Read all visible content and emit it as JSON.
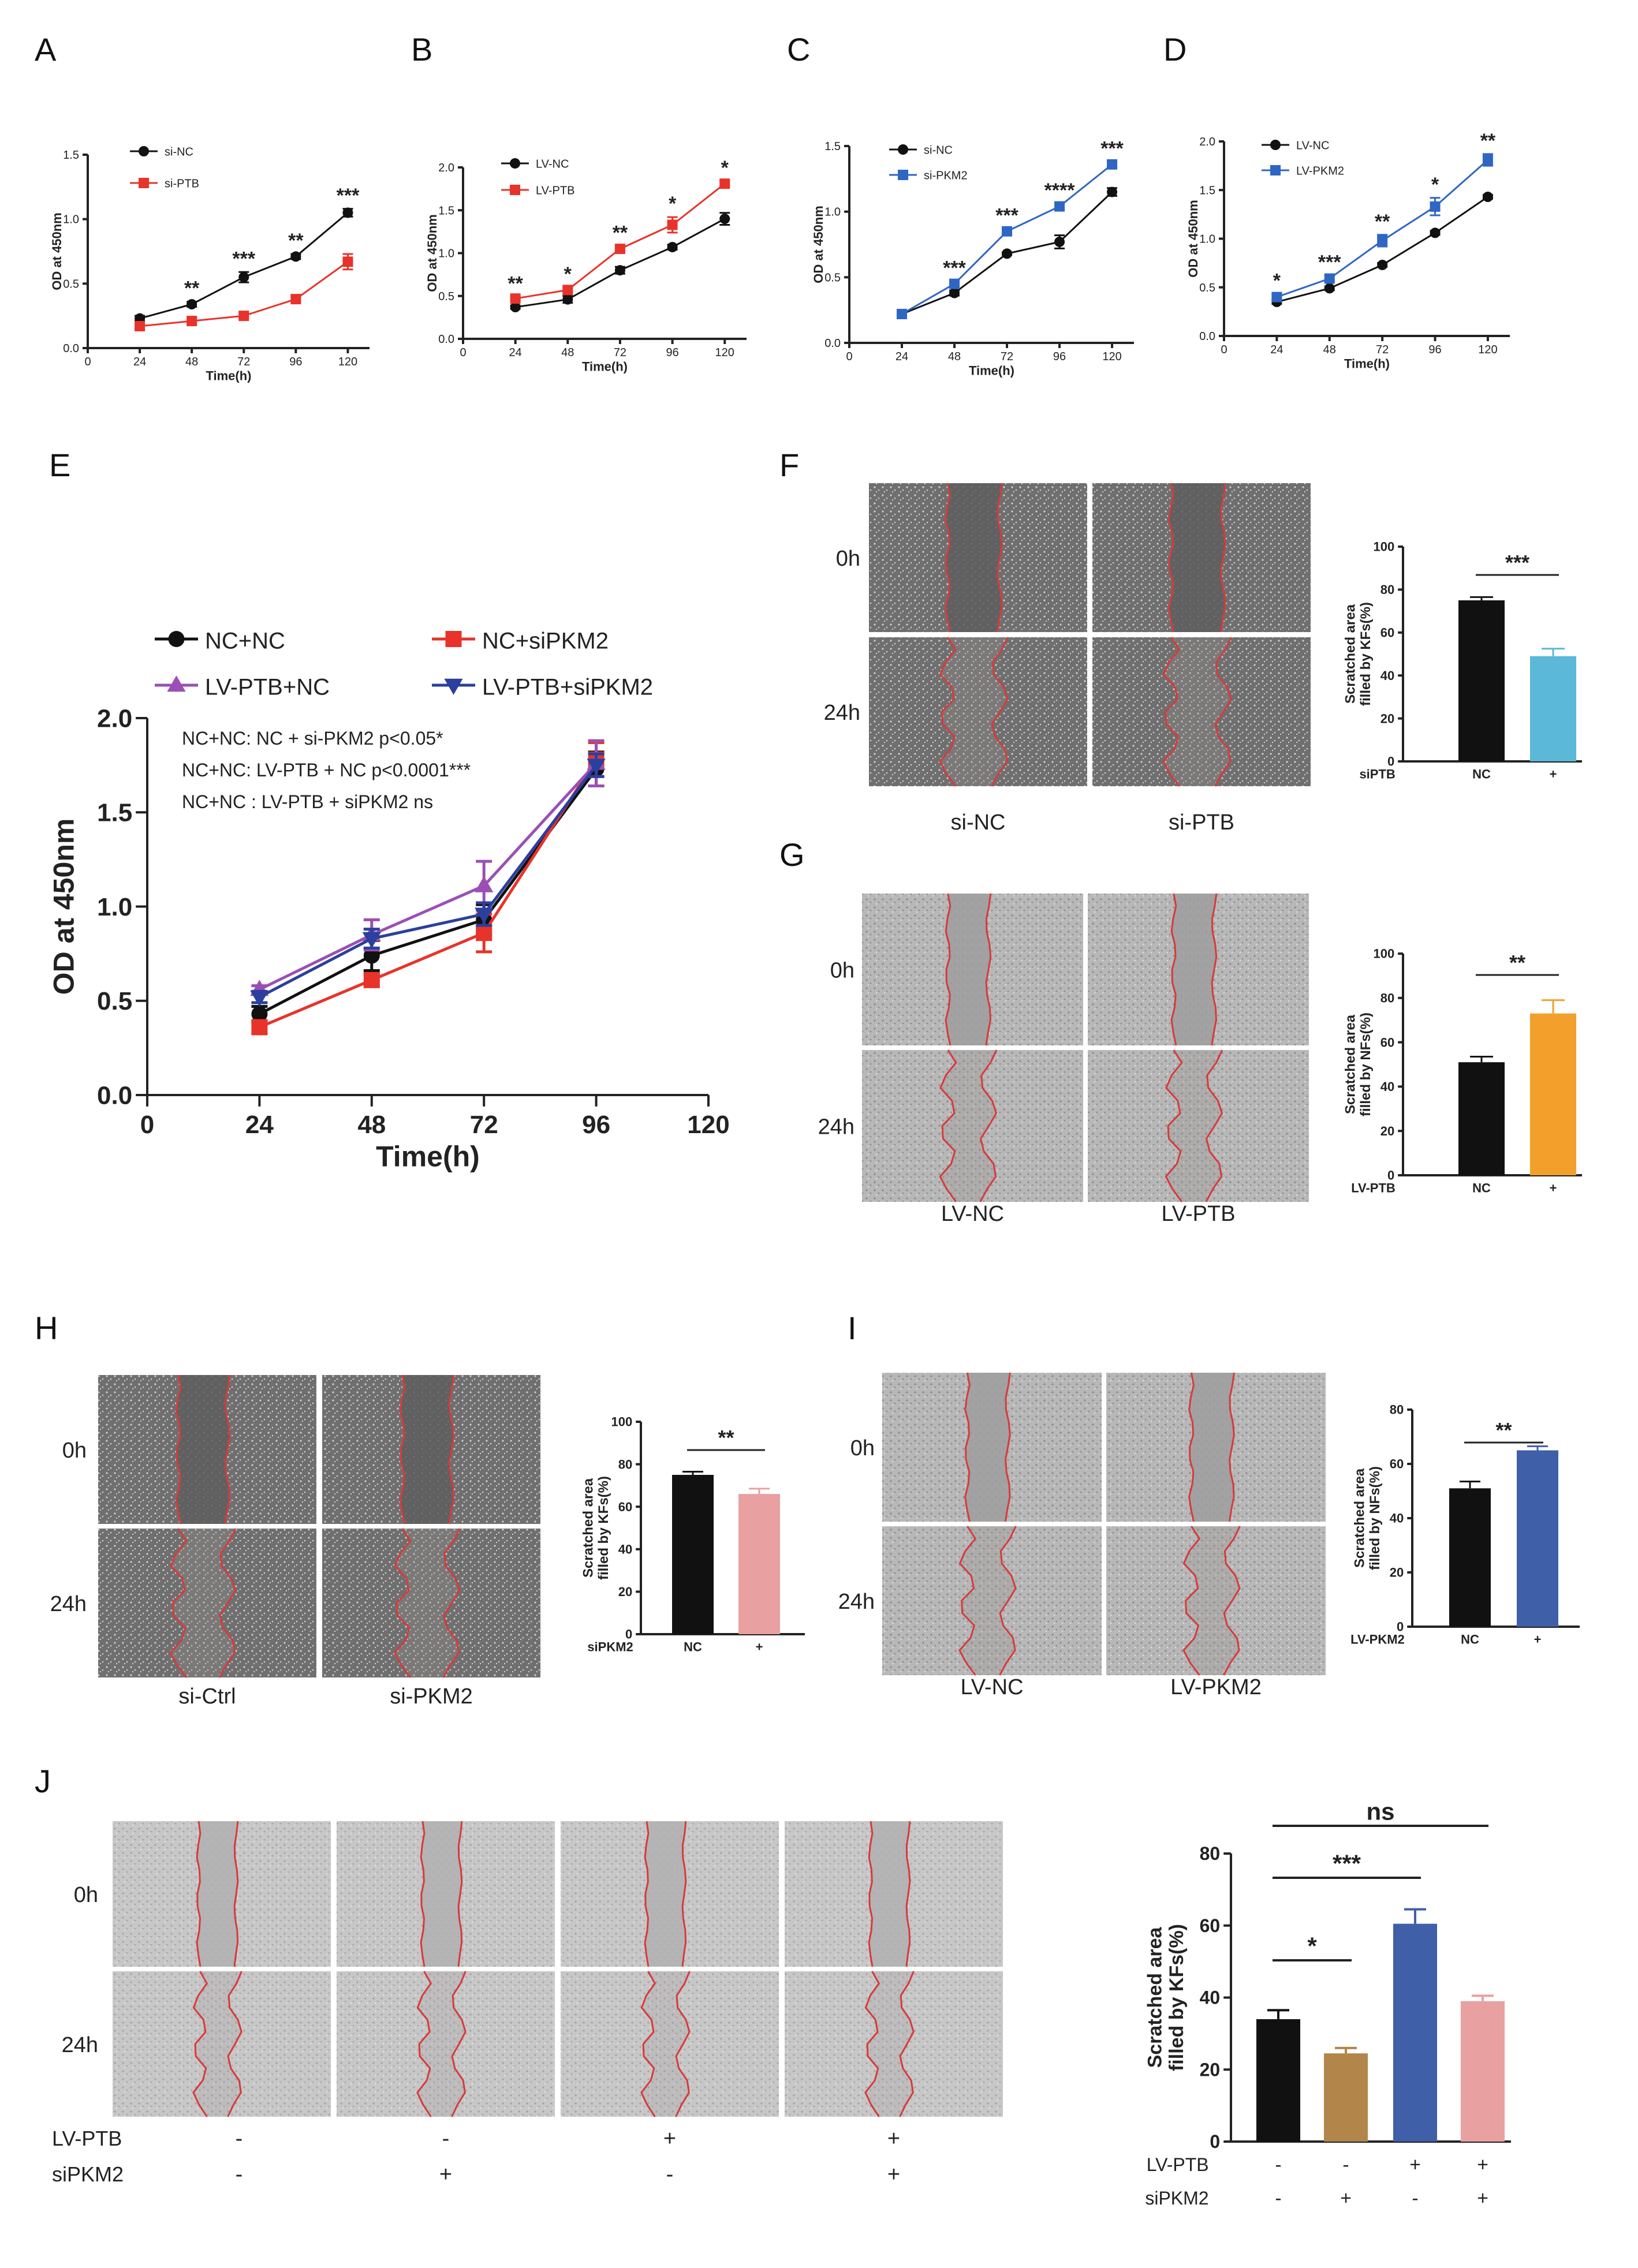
{
  "panel_labels": [
    "A",
    "B",
    "C",
    "D",
    "E",
    "F",
    "G",
    "H",
    "I",
    "J"
  ],
  "colors": {
    "black": "#111111",
    "red": "#e8332a",
    "blue": "#2f66c4",
    "purple": "#9b4fb4",
    "navy": "#2b3f9e",
    "cyan": "#5bb8d8",
    "orange": "#f2a02b",
    "pink": "#e8a0a0",
    "brown": "#b2854a",
    "darkblue": "#3f5fa8"
  },
  "chart_data": [
    {
      "id": "A",
      "type": "line",
      "title": "",
      "xlabel": "Time(h)",
      "ylabel": "OD at 450nm",
      "x": [
        24,
        48,
        72,
        96,
        120
      ],
      "xlim": [
        0,
        130
      ],
      "xticks": [
        0,
        24,
        48,
        72,
        96,
        120
      ],
      "ylim": [
        0,
        1.5
      ],
      "yticks": [
        "0.0",
        "0.5",
        "1.0",
        "1.5"
      ],
      "series": [
        {
          "name": "si-NC",
          "color": "#111111",
          "marker": "circle",
          "values": [
            0.23,
            0.34,
            0.55,
            0.71,
            1.05
          ],
          "err": [
            0.02,
            0.02,
            0.04,
            0.02,
            0.03
          ]
        },
        {
          "name": "si-PTB",
          "color": "#e8332a",
          "marker": "square",
          "values": [
            0.17,
            0.21,
            0.25,
            0.38,
            0.67
          ],
          "err": [
            0.02,
            0.02,
            0.02,
            0.02,
            0.06
          ]
        }
      ],
      "annotations": [
        {
          "x": 48,
          "text": "**"
        },
        {
          "x": 72,
          "text": "***"
        },
        {
          "x": 96,
          "text": "**"
        },
        {
          "x": 120,
          "text": "***"
        }
      ]
    },
    {
      "id": "B",
      "type": "line",
      "title": "",
      "xlabel": "Time(h)",
      "ylabel": "OD at 450nm",
      "x": [
        24,
        48,
        72,
        96,
        120
      ],
      "xlim": [
        0,
        130
      ],
      "xticks": [
        0,
        24,
        48,
        72,
        96,
        120
      ],
      "ylim": [
        0,
        2.0
      ],
      "yticks": [
        "0.0",
        "0.5",
        "1.0",
        "1.5",
        "2.0"
      ],
      "series": [
        {
          "name": "LV-NC",
          "color": "#111111",
          "marker": "circle",
          "values": [
            0.37,
            0.46,
            0.8,
            1.07,
            1.4
          ],
          "err": [
            0.02,
            0.04,
            0.04,
            0.03,
            0.07
          ]
        },
        {
          "name": "LV-PTB",
          "color": "#e8332a",
          "marker": "square",
          "values": [
            0.47,
            0.57,
            1.05,
            1.33,
            1.81
          ],
          "err": [
            0.02,
            0.03,
            0.03,
            0.09,
            0.03
          ]
        }
      ],
      "annotations": [
        {
          "x": 24,
          "text": "**"
        },
        {
          "x": 48,
          "text": "*"
        },
        {
          "x": 72,
          "text": "**"
        },
        {
          "x": 96,
          "text": "*"
        },
        {
          "x": 120,
          "text": "*"
        }
      ]
    },
    {
      "id": "C",
      "type": "line",
      "title": "",
      "xlabel": "Time(h)",
      "ylabel": "OD at 450nm",
      "x": [
        24,
        48,
        72,
        96,
        120
      ],
      "xlim": [
        0,
        130
      ],
      "xticks": [
        0,
        24,
        48,
        72,
        96,
        120
      ],
      "ylim": [
        0,
        1.5
      ],
      "yticks": [
        "0.0",
        "0.5",
        "1.0",
        "1.5"
      ],
      "series": [
        {
          "name": "si-NC",
          "color": "#111111",
          "marker": "circle",
          "values": [
            0.22,
            0.38,
            0.68,
            0.77,
            1.15
          ],
          "err": [
            0.01,
            0.02,
            0.01,
            0.05,
            0.03
          ]
        },
        {
          "name": "si-PKM2",
          "color": "#2f66c4",
          "marker": "square",
          "values": [
            0.22,
            0.45,
            0.85,
            1.04,
            1.36
          ],
          "err": [
            0.01,
            0.02,
            0.02,
            0.02,
            0.02
          ]
        }
      ],
      "annotations": [
        {
          "x": 48,
          "text": "***"
        },
        {
          "x": 72,
          "text": "***"
        },
        {
          "x": 96,
          "text": "****"
        },
        {
          "x": 120,
          "text": "***"
        }
      ]
    },
    {
      "id": "D",
      "type": "line",
      "title": "",
      "xlabel": "Time(h)",
      "ylabel": "OD at 450nm",
      "x": [
        24,
        48,
        72,
        96,
        120
      ],
      "xlim": [
        0,
        130
      ],
      "xticks": [
        0,
        24,
        48,
        72,
        96,
        120
      ],
      "ylim": [
        0,
        2.0
      ],
      "yticks": [
        "0.0",
        "0.5",
        "1.0",
        "1.5",
        "2.0"
      ],
      "series": [
        {
          "name": "LV-NC",
          "color": "#111111",
          "marker": "circle",
          "values": [
            0.35,
            0.49,
            0.73,
            1.06,
            1.43
          ],
          "err": [
            0.02,
            0.02,
            0.02,
            0.02,
            0.02
          ]
        },
        {
          "name": "LV-PKM2",
          "color": "#2f66c4",
          "marker": "square",
          "values": [
            0.4,
            0.59,
            0.98,
            1.33,
            1.81
          ],
          "err": [
            0.03,
            0.03,
            0.06,
            0.09,
            0.06
          ]
        }
      ],
      "annotations": [
        {
          "x": 24,
          "text": "*"
        },
        {
          "x": 48,
          "text": "***"
        },
        {
          "x": 72,
          "text": "**"
        },
        {
          "x": 96,
          "text": "*"
        },
        {
          "x": 120,
          "text": "**"
        }
      ]
    },
    {
      "id": "E",
      "type": "line",
      "title": "",
      "xlabel": "Time(h)",
      "ylabel": "OD at 450nm",
      "x": [
        24,
        48,
        72,
        96
      ],
      "xlim": [
        0,
        120
      ],
      "xticks": [
        0,
        24,
        48,
        72,
        96,
        120
      ],
      "ylim": [
        0,
        2.0
      ],
      "yticks": [
        "0.0",
        "0.5",
        "1.0",
        "1.5",
        "2.0"
      ],
      "series": [
        {
          "name": "NC+NC",
          "color": "#111111",
          "marker": "circle",
          "values": [
            0.43,
            0.74,
            0.93,
            1.73
          ],
          "err": [
            0.04,
            0.08,
            0.08,
            0.09
          ]
        },
        {
          "name": "NC+siPKM2",
          "color": "#e8332a",
          "marker": "square",
          "values": [
            0.36,
            0.61,
            0.86,
            1.78
          ],
          "err": [
            0.03,
            0.03,
            0.1,
            0.09
          ]
        },
        {
          "name": "LV-PTB+NC",
          "color": "#9b4fb4",
          "marker": "triangle",
          "values": [
            0.56,
            0.85,
            1.11,
            1.76
          ],
          "err": [
            0.02,
            0.08,
            0.13,
            0.12
          ]
        },
        {
          "name": "LV-PTB+siPKM2",
          "color": "#2b3f9e",
          "marker": "triangle-down",
          "values": [
            0.52,
            0.83,
            0.96,
            1.75
          ],
          "err": [
            0.03,
            0.05,
            0.06,
            0.06
          ]
        }
      ],
      "stats_text": [
        "NC+NC:  NC +  si-PKM2  p<0.05*",
        "NC+NC:  LV-PTB + NC p<0.0001***",
        "NC+NC : LV-PTB + siPKM2  ns"
      ]
    },
    {
      "id": "F",
      "type": "bar",
      "ylabel": "Scratched area filled by KFs(%)",
      "group_label": "siPTB",
      "categories": [
        "NC",
        "+"
      ],
      "values": [
        75,
        49
      ],
      "err": [
        1.5,
        3.5
      ],
      "colors": [
        "#111111",
        "#5bb8d8"
      ],
      "ylim": [
        0,
        100
      ],
      "yticks": [
        "0",
        "20",
        "40",
        "60",
        "80",
        "100"
      ],
      "comparisons": [
        {
          "from": 0,
          "to": 1,
          "text": "***"
        }
      ]
    },
    {
      "id": "G",
      "type": "bar",
      "ylabel": "Scratched area filled by NFs(%)",
      "group_label": "LV-PTB",
      "categories": [
        "NC",
        "+"
      ],
      "values": [
        51,
        73
      ],
      "err": [
        2.5,
        6
      ],
      "colors": [
        "#111111",
        "#f2a02b"
      ],
      "ylim": [
        0,
        100
      ],
      "yticks": [
        "0",
        "20",
        "40",
        "60",
        "80",
        "100"
      ],
      "comparisons": [
        {
          "from": 0,
          "to": 1,
          "text": "**"
        }
      ]
    },
    {
      "id": "H",
      "type": "bar",
      "ylabel": "Scratched area filled by KFs(%)",
      "group_label": "siPKM2",
      "categories": [
        "NC",
        "+"
      ],
      "values": [
        75,
        66
      ],
      "err": [
        1.5,
        2.5
      ],
      "colors": [
        "#111111",
        "#e8a0a0"
      ],
      "ylim": [
        0,
        100
      ],
      "yticks": [
        "0",
        "20",
        "40",
        "60",
        "80",
        "100"
      ],
      "comparisons": [
        {
          "from": 0,
          "to": 1,
          "text": "**"
        }
      ]
    },
    {
      "id": "I",
      "type": "bar",
      "ylabel": "Scratched area filled by NFs(%)",
      "group_label": "LV-PKM2",
      "categories": [
        "NC",
        "+"
      ],
      "values": [
        51,
        65
      ],
      "err": [
        2.5,
        1.5
      ],
      "colors": [
        "#111111",
        "#3f5fa8"
      ],
      "ylim": [
        0,
        80
      ],
      "yticks": [
        "0",
        "20",
        "40",
        "60",
        "80"
      ],
      "comparisons": [
        {
          "from": 0,
          "to": 1,
          "text": "**"
        }
      ]
    },
    {
      "id": "J",
      "type": "bar",
      "ylabel": "Scratched area filled by KFs(%)",
      "row_labels": [
        "LV-PTB",
        "siPKM2"
      ],
      "condition_rows": [
        [
          "-",
          "-",
          "+",
          "+"
        ],
        [
          "-",
          "+",
          "-",
          "+"
        ]
      ],
      "values": [
        34,
        24.5,
        60.5,
        39
      ],
      "err": [
        2.5,
        1.5,
        4,
        1.5
      ],
      "colors": [
        "#111111",
        "#b2854a",
        "#3f5fa8",
        "#e8a0a0"
      ],
      "ylim": [
        0,
        80
      ],
      "yticks": [
        "0",
        "20",
        "40",
        "60",
        "80"
      ],
      "comparisons": [
        {
          "from": 0,
          "to": 1,
          "text": "*"
        },
        {
          "from": 0,
          "to": 2,
          "text": "***"
        },
        {
          "from": 0,
          "to": 3,
          "text": "ns"
        }
      ]
    }
  ],
  "scratch_panels": {
    "F": {
      "time_labels": [
        "0h",
        "24h"
      ],
      "col_labels": [
        "si-NC",
        "si-PTB"
      ]
    },
    "G": {
      "time_labels": [
        "0h",
        "24h"
      ],
      "col_labels": [
        "LV-NC",
        "LV-PTB"
      ]
    },
    "H": {
      "time_labels": [
        "0h",
        "24h"
      ],
      "col_labels": [
        "si-Ctrl",
        "si-PKM2"
      ]
    },
    "I": {
      "time_labels": [
        "0h",
        "24h"
      ],
      "col_labels": [
        "LV-NC",
        "LV-PKM2"
      ]
    },
    "J": {
      "time_labels": [
        "0h",
        "24h"
      ],
      "row_labels": [
        "LV-PTB",
        "siPKM2"
      ],
      "condition_rows": [
        [
          "-",
          "-",
          "+",
          "+"
        ],
        [
          "-",
          "+",
          "-",
          "+"
        ]
      ]
    }
  }
}
